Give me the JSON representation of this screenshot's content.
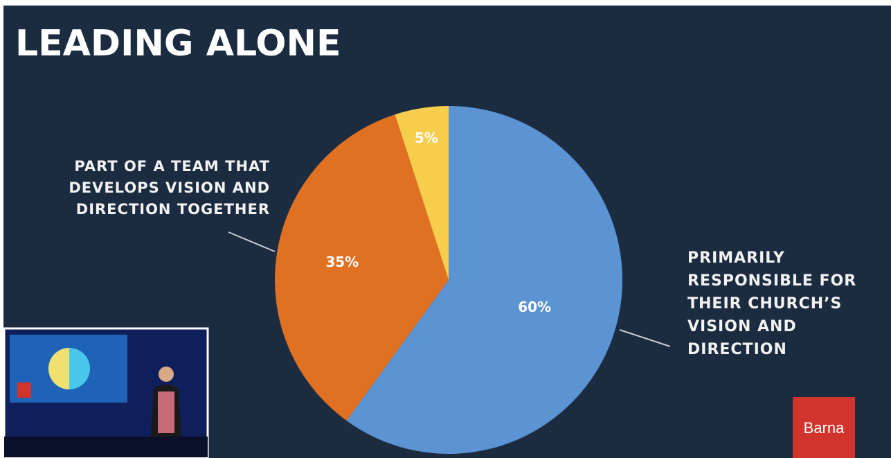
{
  "chart_data": {
    "type": "pie",
    "title": "LEADING ALONE",
    "categories": [
      "PRIMARILY RESPONSIBLE FOR THEIR CHURCH’S VISION AND DIRECTION",
      "PART OF A TEAM THAT DEVELOPS VISION AND DIRECTION TOGETHER",
      null
    ],
    "values": [
      60,
      35,
      5
    ],
    "value_labels": [
      "60%",
      "35%",
      "5%"
    ],
    "colors": [
      "#5b93d3",
      "#e07022",
      "#f6cd4c"
    ],
    "logo": "Barna"
  }
}
